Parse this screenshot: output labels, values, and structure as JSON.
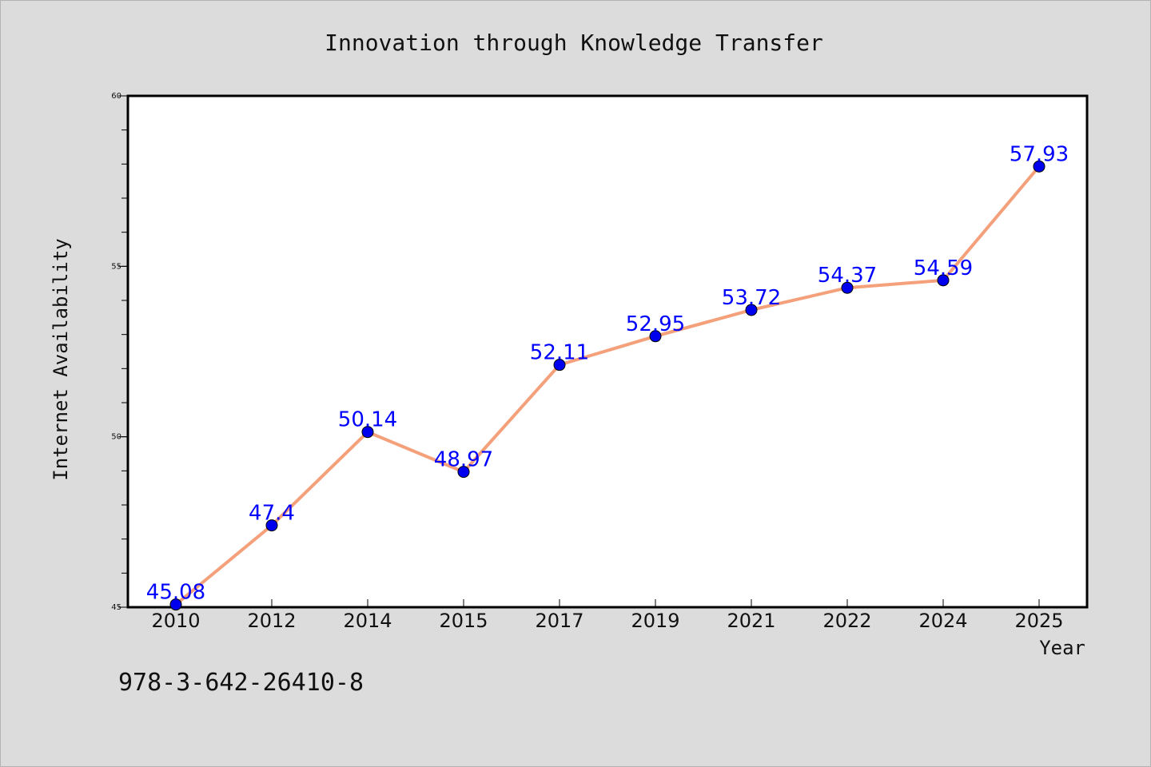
{
  "chart_data": {
    "type": "line",
    "title": "Innovation through Knowledge Transfer",
    "xlabel": "Year",
    "ylabel": "Internet Availability",
    "categories": [
      "2010",
      "2012",
      "2014",
      "2015",
      "2017",
      "2019",
      "2021",
      "2022",
      "2024",
      "2025"
    ],
    "series": [
      {
        "values": [
          45.08,
          47.4,
          50.14,
          48.97,
          52.11,
          52.95,
          53.72,
          54.37,
          54.59,
          57.93
        ],
        "labels": [
          "45.08",
          "47.4",
          "50.14",
          "48.97",
          "52.11",
          "52.95",
          "53.72",
          "54.37",
          "54.59",
          "57.93"
        ],
        "line_color": "#f4a07a",
        "marker_color": "#0000ee"
      }
    ],
    "ylim": [
      45,
      60
    ],
    "yticks": [
      45,
      50,
      55,
      60
    ],
    "ytick_labels": [
      "45",
      "50",
      "55",
      "60"
    ],
    "grid": false,
    "label_color": "#0000ff"
  },
  "footer_text": "978-3-642-26410-8"
}
